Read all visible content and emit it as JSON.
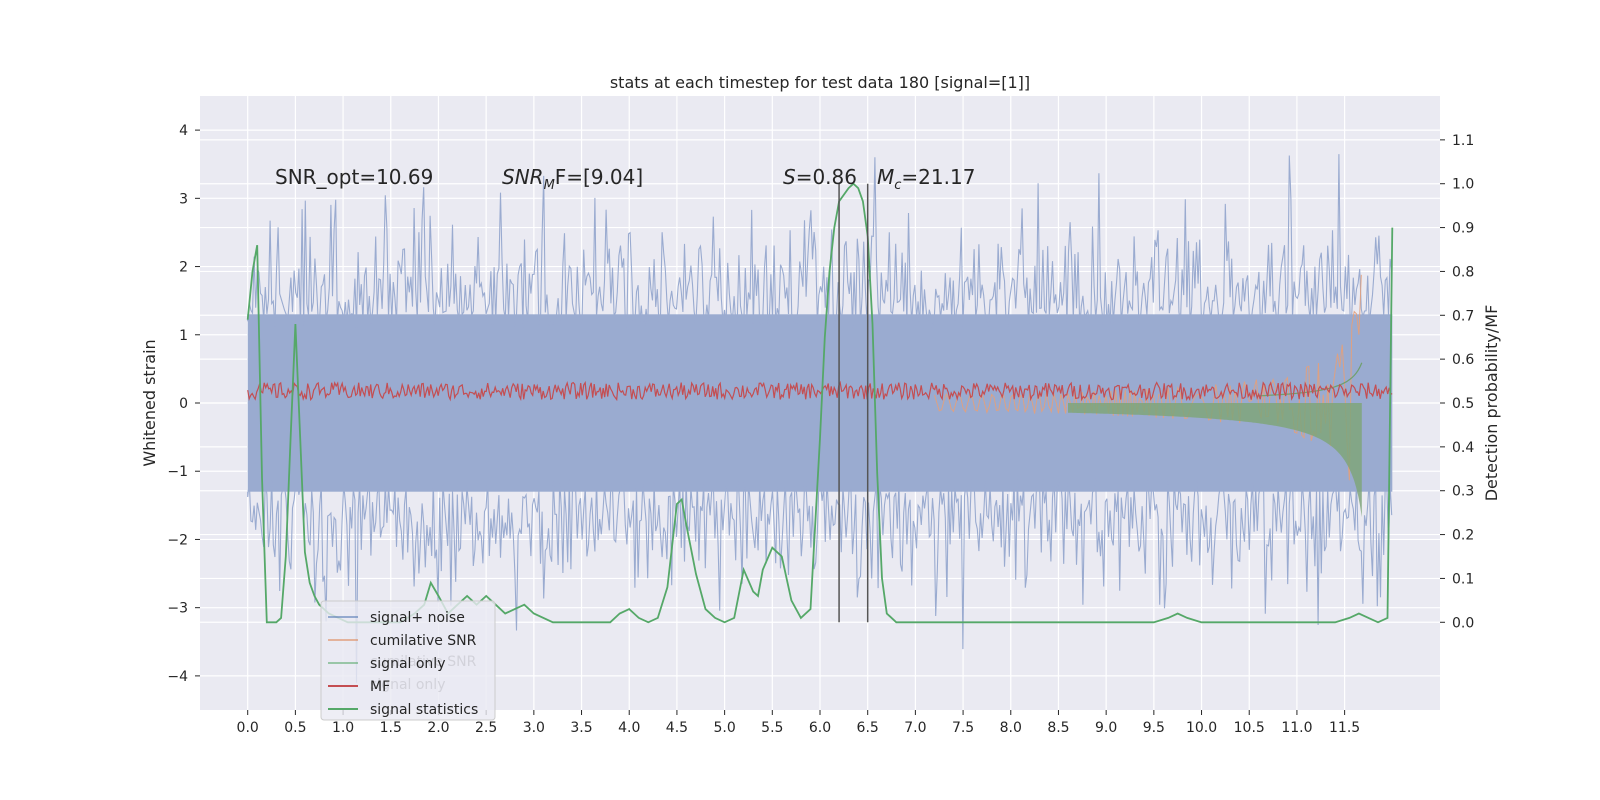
{
  "chart_data": {
    "type": "line",
    "title": "stats at each timestep for test data 180 [signal=[1]]",
    "xlabel": "",
    "ylabel_left": "Whitened strain",
    "ylabel_right": "Detection probability/MF",
    "xlim": [
      -0.5,
      12.5
    ],
    "ylim_left": [
      -4.5,
      4.5
    ],
    "ylim_right": [
      -0.2,
      1.2
    ],
    "x_ticks": [
      0.0,
      0.5,
      1.0,
      1.5,
      2.0,
      2.5,
      3.0,
      3.5,
      4.0,
      4.5,
      5.0,
      5.5,
      6.0,
      6.5,
      7.0,
      7.5,
      8.0,
      8.5,
      9.0,
      9.5,
      10.0,
      10.5,
      11.0,
      11.5
    ],
    "x_tick_labels": [
      "0.0",
      "0.5",
      "1.0",
      "1.5",
      "2.0",
      "2.5",
      "3.0",
      "3.5",
      "4.0",
      "4.5",
      "5.0",
      "5.5",
      "6.0",
      "6.5",
      "7.0",
      "7.5",
      "8.0",
      "8.5",
      "9.0",
      "9.5",
      "10.0",
      "10.5",
      "11.0",
      "11.5"
    ],
    "y_ticks_left": [
      4,
      3,
      2,
      1,
      0,
      -1,
      -2,
      -3,
      -4
    ],
    "y_tick_labels_left": [
      "4",
      "3",
      "2",
      "1",
      "0",
      "−1",
      "−2",
      "−3",
      "−4"
    ],
    "y_ticks_right": [
      1.1,
      1.0,
      0.9,
      0.8,
      0.7,
      0.6,
      0.5,
      0.4,
      0.3,
      0.2,
      0.1,
      0.0
    ],
    "y_tick_labels_right": [
      "1.1",
      "1.0",
      "0.9",
      "0.8",
      "0.7",
      "0.6",
      "0.5",
      "0.4",
      "0.3",
      "0.2",
      "0.1",
      "0.0"
    ],
    "grid": true,
    "legend_position": "lower-left",
    "legend": [
      {
        "label": "signal+ noise",
        "color": "#4c72b0"
      },
      {
        "label": "cumilative SNR",
        "color": "#dd8452"
      },
      {
        "label": "signal only",
        "color": "#55a868"
      },
      {
        "label": "MF",
        "color": "#c44e52"
      },
      {
        "label": "signal statistics",
        "color": "#55a868"
      }
    ],
    "legend_ghost": [
      {
        "label": "cumilative SNR"
      },
      {
        "label": "signal only"
      }
    ],
    "annotations": {
      "snr_opt": "SNR_opt=10.69",
      "snr_mf_name": "SNR",
      "snr_mf_sub": "M",
      "snr_mf_tail": "F=[9.04]",
      "s_name": "S",
      "s_val": "=0.86",
      "mc_name": "M",
      "mc_sub": "c",
      "mc_val": "=21.17"
    },
    "merger_window": [
      6.2,
      6.5
    ],
    "noise_band": [
      -1.3,
      1.3
    ],
    "mf_band": [
      0.05,
      0.3
    ],
    "signal_statistics": {
      "x": [
        0.0,
        0.05,
        0.1,
        0.15,
        0.2,
        0.25,
        0.3,
        0.35,
        0.4,
        0.45,
        0.5,
        0.55,
        0.6,
        0.65,
        0.7,
        0.75,
        0.85,
        0.95,
        1.05,
        1.15,
        1.3,
        1.45,
        1.6,
        1.75,
        1.85,
        1.92,
        2.0,
        2.1,
        2.2,
        2.3,
        2.4,
        2.5,
        2.6,
        2.7,
        2.8,
        2.9,
        3.0,
        3.2,
        3.5,
        3.8,
        3.9,
        4.0,
        4.1,
        4.2,
        4.3,
        4.4,
        4.5,
        4.55,
        4.6,
        4.7,
        4.8,
        4.9,
        5.0,
        5.1,
        5.2,
        5.3,
        5.35,
        5.4,
        5.5,
        5.6,
        5.7,
        5.8,
        5.9,
        6.0,
        6.05,
        6.1,
        6.15,
        6.2,
        6.3,
        6.35,
        6.4,
        6.45,
        6.5,
        6.55,
        6.6,
        6.65,
        6.7,
        6.8,
        7.0,
        8.0,
        9.0,
        9.5,
        9.65,
        9.75,
        9.85,
        10.0,
        10.5,
        11.0,
        11.4,
        11.55,
        11.65,
        11.75,
        11.85,
        11.95,
        12.0
      ],
      "y": [
        0.69,
        0.8,
        0.86,
        0.33,
        0.0,
        0.0,
        0.0,
        0.01,
        0.15,
        0.42,
        0.68,
        0.42,
        0.16,
        0.09,
        0.06,
        0.04,
        0.02,
        0.01,
        0.0,
        0.0,
        0.0,
        0.0,
        0.0,
        0.02,
        0.04,
        0.09,
        0.06,
        0.02,
        0.04,
        0.06,
        0.04,
        0.06,
        0.04,
        0.02,
        0.03,
        0.04,
        0.02,
        0.0,
        0.0,
        0.0,
        0.02,
        0.03,
        0.01,
        0.0,
        0.01,
        0.08,
        0.27,
        0.28,
        0.22,
        0.11,
        0.03,
        0.01,
        0.0,
        0.01,
        0.12,
        0.07,
        0.06,
        0.12,
        0.17,
        0.15,
        0.05,
        0.01,
        0.03,
        0.42,
        0.65,
        0.8,
        0.9,
        0.96,
        0.99,
        1.0,
        0.99,
        0.96,
        0.88,
        0.68,
        0.34,
        0.1,
        0.02,
        0.0,
        0.0,
        0.0,
        0.0,
        0.0,
        0.01,
        0.02,
        0.01,
        0.0,
        0.0,
        0.0,
        0.0,
        0.01,
        0.02,
        0.01,
        0.0,
        0.01,
        0.9
      ]
    }
  }
}
